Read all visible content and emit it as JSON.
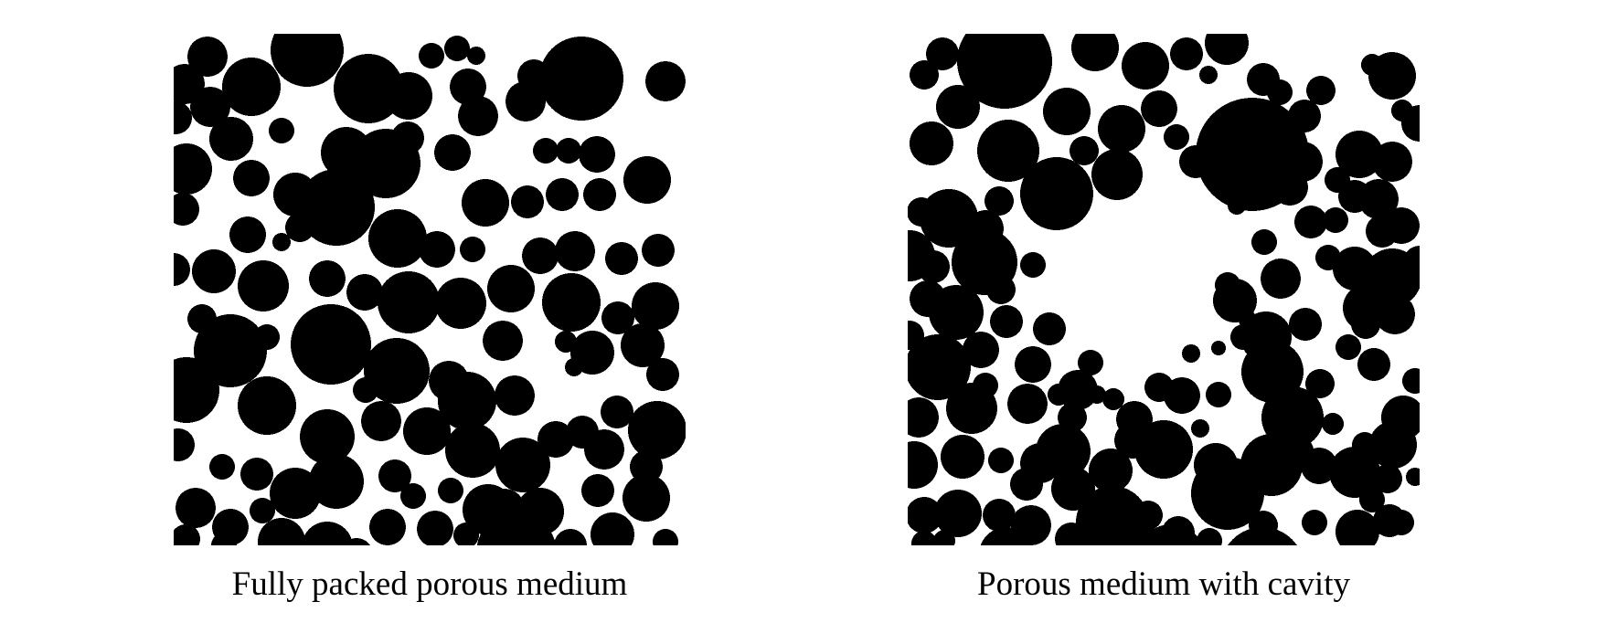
{
  "colors": {
    "background": "#ffffff",
    "solid": "#000000"
  },
  "panels": [
    {
      "caption": "Fully packed porous medium"
    },
    {
      "caption": "Porous medium with cavity"
    }
  ]
}
